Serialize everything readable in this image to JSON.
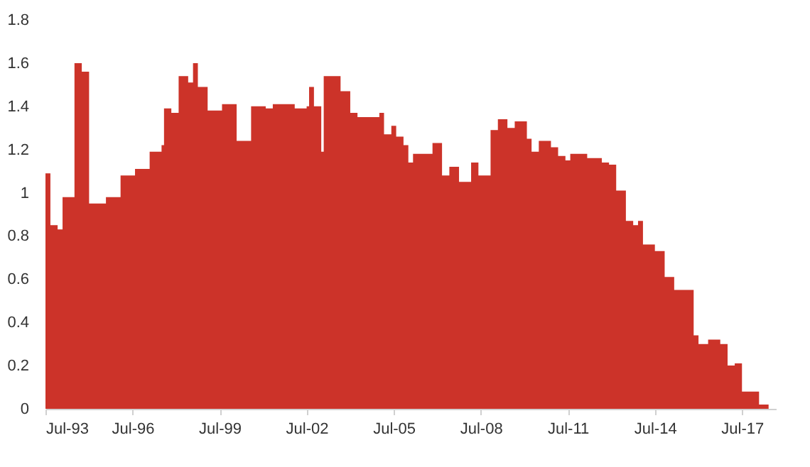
{
  "chart_data": {
    "type": "area",
    "x": [
      "1993-07",
      "1993-09",
      "1993-12",
      "1994-02",
      "1994-07",
      "1994-10",
      "1995-01",
      "1995-08",
      "1996-02",
      "1996-08",
      "1997-02",
      "1997-07",
      "1997-08",
      "1997-11",
      "1998-02",
      "1998-06",
      "1998-08",
      "1998-10",
      "1999-02",
      "1999-08",
      "2000-02",
      "2000-08",
      "2001-02",
      "2001-05",
      "2002-02",
      "2002-07",
      "2002-08",
      "2002-10",
      "2003-01",
      "2003-02",
      "2003-09",
      "2004-01",
      "2004-04",
      "2005-01",
      "2005-03",
      "2005-06",
      "2005-08",
      "2005-11",
      "2006-01",
      "2006-03",
      "2006-11",
      "2007-03",
      "2007-06",
      "2007-10",
      "2008-03",
      "2008-06",
      "2008-11",
      "2009-02",
      "2009-06",
      "2009-09",
      "2010-02",
      "2010-04",
      "2010-07",
      "2010-12",
      "2011-03",
      "2011-06",
      "2011-08",
      "2012-03",
      "2012-09",
      "2012-12",
      "2013-03",
      "2013-07",
      "2013-10",
      "2013-12",
      "2014-02",
      "2014-07",
      "2014-11",
      "2015-03",
      "2015-11",
      "2016-01",
      "2016-05",
      "2016-10",
      "2017-01",
      "2017-04",
      "2017-07",
      "2018-02",
      "2018-06"
    ],
    "series": [
      {
        "color": "#cc3329",
        "values": [
          1.09,
          0.85,
          0.83,
          0.98,
          1.6,
          1.56,
          0.95,
          0.98,
          1.08,
          1.11,
          1.19,
          1.22,
          1.39,
          1.37,
          1.54,
          1.51,
          1.6,
          1.49,
          1.38,
          1.41,
          1.24,
          1.4,
          1.39,
          1.41,
          1.39,
          1.4,
          1.49,
          1.4,
          1.19,
          1.54,
          1.47,
          1.37,
          1.35,
          1.37,
          1.27,
          1.31,
          1.26,
          1.22,
          1.14,
          1.18,
          1.23,
          1.08,
          1.12,
          1.05,
          1.14,
          1.08,
          1.29,
          1.34,
          1.3,
          1.33,
          1.25,
          1.19,
          1.24,
          1.21,
          1.17,
          1.15,
          1.18,
          1.16,
          1.14,
          1.13,
          1.01,
          0.87,
          0.85,
          0.87,
          0.76,
          0.73,
          0.61,
          0.55,
          0.34,
          0.3,
          0.32,
          0.3,
          0.2,
          0.21,
          0.08,
          0.02,
          0.01
        ]
      }
    ],
    "xlim": [
      "1993-07",
      "2018-09"
    ],
    "xticks": [
      {
        "value": "1993-07",
        "label": "Jul-93"
      },
      {
        "value": "1996-07",
        "label": "Jul-96"
      },
      {
        "value": "1999-07",
        "label": "Jul-99"
      },
      {
        "value": "2002-07",
        "label": "Jul-02"
      },
      {
        "value": "2005-07",
        "label": "Jul-05"
      },
      {
        "value": "2008-07",
        "label": "Jul-08"
      },
      {
        "value": "2011-07",
        "label": "Jul-11"
      },
      {
        "value": "2014-07",
        "label": "Jul-14"
      },
      {
        "value": "2017-07",
        "label": "Jul-17"
      }
    ],
    "ylim": [
      0,
      1.8
    ],
    "yticks": [
      0,
      0.2,
      0.4,
      0.6,
      0.8,
      1,
      1.2,
      1.4,
      1.6,
      1.8
    ],
    "grid": false
  }
}
